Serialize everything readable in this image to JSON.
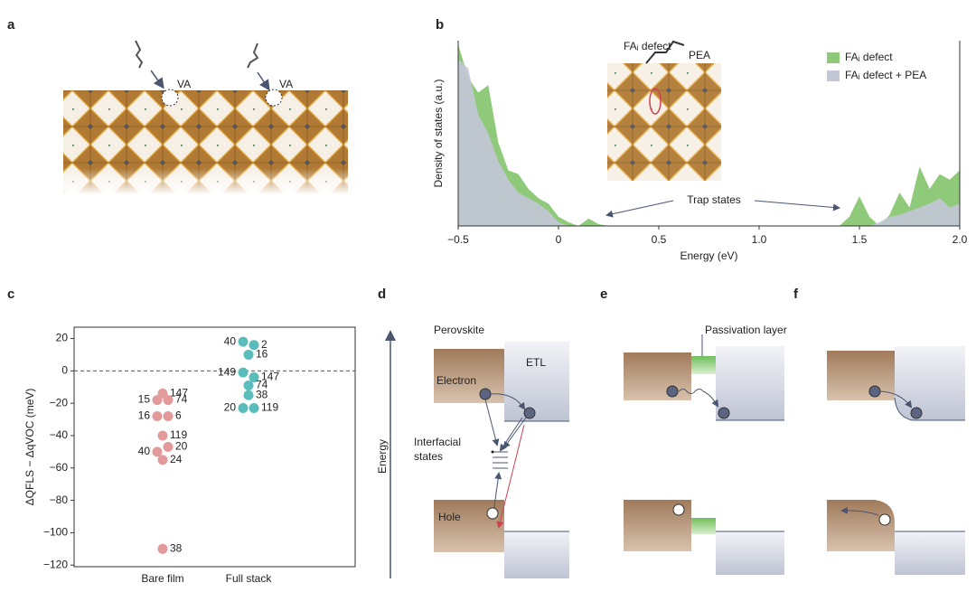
{
  "panel_labels": [
    "a",
    "b",
    "c",
    "d",
    "e",
    "f"
  ],
  "panel_a": {
    "vacancy_labels": [
      "VA",
      "VA"
    ]
  },
  "panel_b_inset": {
    "defect_label": "FAᵢ defect",
    "molecule_label": "PEA"
  },
  "chart_data": [
    {
      "type": "area",
      "xlabel": "Energy (eV)",
      "ylabel": "Density of states (a.u.)",
      "annotation": "Trap states",
      "x": [
        -0.5,
        -0.45,
        -0.4,
        -0.35,
        -0.3,
        -0.25,
        -0.2,
        -0.15,
        -0.1,
        -0.05,
        0,
        0.05,
        0.1,
        0.15,
        0.2,
        0.25,
        0.5,
        1.0,
        1.4,
        1.45,
        1.5,
        1.55,
        1.6,
        1.65,
        1.7,
        1.75,
        1.8,
        1.85,
        1.9,
        1.95,
        2.0
      ],
      "series": [
        {
          "name": "FAᵢ defect",
          "color": "#8fc97a",
          "values": [
            0.98,
            0.8,
            0.72,
            0.76,
            0.45,
            0.3,
            0.28,
            0.2,
            0.15,
            0.12,
            0.05,
            0.02,
            0,
            0.04,
            0.01,
            0,
            0,
            0,
            0,
            0.05,
            0.16,
            0.05,
            0,
            0.06,
            0.18,
            0.1,
            0.32,
            0.2,
            0.28,
            0.25,
            0.3
          ]
        },
        {
          "name": "FAᵢ defect + PEA",
          "color": "#c3c7d6",
          "values": [
            0.9,
            0.85,
            0.6,
            0.5,
            0.35,
            0.25,
            0.18,
            0.15,
            0.12,
            0.08,
            0.02,
            0,
            0,
            0,
            0,
            0,
            0,
            0,
            0,
            0,
            0,
            0,
            0.02,
            0.05,
            0.06,
            0.08,
            0.1,
            0.12,
            0.15,
            0.1,
            0.12
          ]
        }
      ],
      "xlim": [
        -0.5,
        2.0
      ],
      "xticks": [
        {
          "value": -0.5,
          "label": "−0.5"
        },
        0,
        0.5,
        {
          "value": 1,
          "label": "1.0"
        },
        1.5,
        {
          "value": 2,
          "label": "2.0"
        }
      ],
      "ylim": [
        0,
        1
      ]
    },
    {
      "type": "scatter",
      "ylabel": "ΔQFLS − ΔqVOC (meV)",
      "categories": [
        "Bare film",
        "Full stack"
      ],
      "series": [
        {
          "color": "#e29a9a",
          "values": [
            -14,
            -18,
            -18,
            -28,
            -28,
            -40,
            -50,
            -47,
            -55,
            -110
          ],
          "point_labels": [
            "147",
            "15",
            "74",
            "16",
            "6",
            "119",
            "40",
            "20",
            "24",
            "38"
          ]
        },
        {
          "color": "#5bbdbb",
          "values": [
            18,
            16,
            10,
            -1,
            -4,
            -9,
            -15,
            -23,
            -23
          ],
          "point_labels": [
            "40",
            "2",
            "16",
            "149",
            "147",
            "74",
            "38",
            "20",
            "119"
          ]
        }
      ],
      "ylim": [
        -121,
        27
      ],
      "yticks": [
        20,
        0,
        {
          "value": -20,
          "label": "−20"
        },
        {
          "value": -40,
          "label": "−40"
        },
        {
          "value": -60,
          "label": "−60"
        },
        {
          "value": -80,
          "label": "−80"
        },
        {
          "value": -100,
          "label": "−100"
        },
        {
          "value": -120,
          "label": "−120"
        }
      ],
      "reference_line": 0
    }
  ],
  "diagram": {
    "energy": "Energy",
    "perovskite": "Perovskite",
    "etl": "ETL",
    "electron": "Electron",
    "interfacial_states": [
      "Interfacial",
      "states"
    ],
    "hole": "Hole",
    "passivation": "Passivation layer"
  }
}
